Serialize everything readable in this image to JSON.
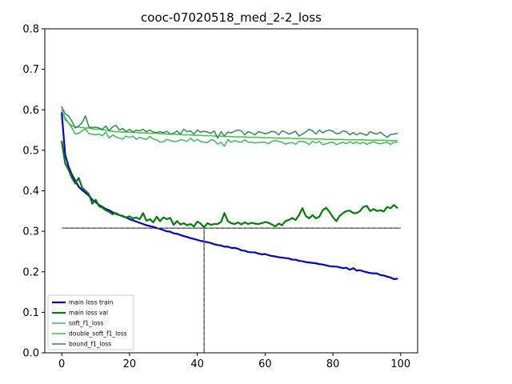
{
  "chart_data": {
    "type": "line",
    "title": "cooc-07020518_med_2-2_loss",
    "xlabel": "",
    "ylabel": "",
    "xlim": [
      -5,
      105
    ],
    "ylim": [
      0.0,
      0.8
    ],
    "x_ticks": [
      0,
      20,
      40,
      60,
      80,
      100
    ],
    "y_ticks": [
      0.0,
      0.1,
      0.2,
      0.3,
      0.4,
      0.5,
      0.6,
      0.7,
      0.8
    ],
    "x_tick_labels": [
      "0",
      "20",
      "40",
      "60",
      "80",
      "100"
    ],
    "y_tick_labels": [
      "0.0",
      "0.1",
      "0.2",
      "0.3",
      "0.4",
      "0.5",
      "0.6",
      "0.7",
      "0.8"
    ],
    "grid": false,
    "legend_position": "lower-left",
    "reference_lines": {
      "horizontal_y": 0.308,
      "vertical_x": 42
    },
    "series": [
      {
        "name": "main loss train",
        "color": "#0000dd",
        "width": 2.2,
        "x": [
          0,
          1,
          2,
          3,
          4,
          5,
          6,
          7,
          8,
          9,
          10,
          11,
          12,
          13,
          14,
          15,
          16,
          17,
          18,
          19,
          20,
          21,
          22,
          23,
          24,
          25,
          26,
          27,
          28,
          29,
          30,
          31,
          32,
          33,
          34,
          35,
          36,
          37,
          38,
          39,
          40,
          41,
          42,
          43,
          44,
          45,
          46,
          47,
          48,
          49,
          50,
          51,
          52,
          53,
          54,
          55,
          56,
          57,
          58,
          59,
          60,
          61,
          62,
          63,
          64,
          65,
          66,
          67,
          68,
          69,
          70,
          71,
          72,
          73,
          74,
          75,
          76,
          77,
          78,
          79,
          80,
          81,
          82,
          83,
          84,
          85,
          86,
          87,
          88,
          89,
          90,
          91,
          92,
          93,
          94,
          95,
          96,
          97,
          98,
          99
        ],
        "values": [
          0.592,
          0.49,
          0.46,
          0.44,
          0.425,
          0.41,
          0.402,
          0.395,
          0.388,
          0.378,
          0.372,
          0.365,
          0.36,
          0.355,
          0.352,
          0.347,
          0.343,
          0.34,
          0.337,
          0.334,
          0.33,
          0.327,
          0.324,
          0.321,
          0.318,
          0.315,
          0.313,
          0.311,
          0.308,
          0.306,
          0.303,
          0.3,
          0.299,
          0.295,
          0.294,
          0.291,
          0.288,
          0.286,
          0.283,
          0.281,
          0.279,
          0.276,
          0.275,
          0.273,
          0.271,
          0.268,
          0.266,
          0.265,
          0.262,
          0.262,
          0.259,
          0.259,
          0.257,
          0.253,
          0.252,
          0.249,
          0.248,
          0.248,
          0.245,
          0.243,
          0.244,
          0.241,
          0.239,
          0.238,
          0.236,
          0.235,
          0.234,
          0.233,
          0.23,
          0.23,
          0.227,
          0.226,
          0.224,
          0.223,
          0.222,
          0.221,
          0.219,
          0.218,
          0.216,
          0.214,
          0.213,
          0.213,
          0.211,
          0.209,
          0.21,
          0.205,
          0.209,
          0.203,
          0.204,
          0.201,
          0.199,
          0.197,
          0.196,
          0.196,
          0.192,
          0.191,
          0.188,
          0.186,
          0.182,
          0.183
        ]
      },
      {
        "name": "main loss val",
        "color": "#008000",
        "width": 2.2,
        "x": [
          0,
          1,
          2,
          3,
          4,
          5,
          6,
          7,
          8,
          9,
          10,
          11,
          12,
          13,
          14,
          15,
          16,
          17,
          18,
          19,
          20,
          21,
          22,
          23,
          24,
          25,
          26,
          27,
          28,
          29,
          30,
          31,
          32,
          33,
          34,
          35,
          36,
          37,
          38,
          39,
          40,
          41,
          42,
          43,
          44,
          45,
          46,
          47,
          48,
          49,
          50,
          51,
          52,
          53,
          54,
          55,
          56,
          57,
          58,
          59,
          60,
          61,
          62,
          63,
          64,
          65,
          66,
          67,
          68,
          69,
          70,
          71,
          72,
          73,
          74,
          75,
          76,
          77,
          78,
          79,
          80,
          81,
          82,
          83,
          84,
          85,
          86,
          87,
          88,
          89,
          90,
          91,
          92,
          93,
          94,
          95,
          96,
          97,
          98,
          99
        ],
        "values": [
          0.522,
          0.468,
          0.452,
          0.432,
          0.418,
          0.432,
          0.408,
          0.4,
          0.392,
          0.368,
          0.378,
          0.362,
          0.358,
          0.352,
          0.348,
          0.342,
          0.345,
          0.34,
          0.338,
          0.334,
          0.337,
          0.332,
          0.334,
          0.33,
          0.345,
          0.326,
          0.33,
          0.322,
          0.336,
          0.325,
          0.334,
          0.33,
          0.333,
          0.316,
          0.325,
          0.317,
          0.32,
          0.315,
          0.318,
          0.312,
          0.324,
          0.319,
          0.31,
          0.32,
          0.316,
          0.318,
          0.318,
          0.323,
          0.345,
          0.325,
          0.32,
          0.318,
          0.322,
          0.317,
          0.322,
          0.318,
          0.321,
          0.319,
          0.318,
          0.32,
          0.323,
          0.321,
          0.317,
          0.312,
          0.319,
          0.315,
          0.325,
          0.328,
          0.333,
          0.328,
          0.34,
          0.357,
          0.338,
          0.332,
          0.34,
          0.332,
          0.336,
          0.352,
          0.358,
          0.348,
          0.335,
          0.325,
          0.338,
          0.345,
          0.35,
          0.351,
          0.345,
          0.345,
          0.35,
          0.36,
          0.363,
          0.35,
          0.355,
          0.35,
          0.352,
          0.349,
          0.36,
          0.357,
          0.365,
          0.358
        ]
      },
      {
        "name": "soft_f1_loss",
        "color": "#3cb860",
        "width": 1.5,
        "x": [
          0,
          1,
          2,
          3,
          4,
          5,
          6,
          7,
          8,
          9,
          10,
          11,
          12,
          13,
          14,
          15,
          16,
          17,
          18,
          19,
          20,
          21,
          22,
          23,
          24,
          25,
          26,
          27,
          28,
          29,
          30,
          31,
          32,
          33,
          34,
          35,
          36,
          37,
          38,
          39,
          40,
          41,
          42,
          43,
          44,
          45,
          46,
          47,
          48,
          49,
          50,
          51,
          52,
          53,
          54,
          55,
          56,
          57,
          58,
          59,
          60,
          61,
          62,
          63,
          64,
          65,
          66,
          67,
          68,
          69,
          70,
          71,
          72,
          73,
          74,
          75,
          76,
          77,
          78,
          79,
          80,
          81,
          82,
          83,
          84,
          85,
          86,
          87,
          88,
          89,
          90,
          91,
          92,
          93,
          94,
          95,
          96,
          97,
          98,
          99
        ],
        "values": [
          0.6,
          0.58,
          0.568,
          0.555,
          0.54,
          0.542,
          0.548,
          0.553,
          0.541,
          0.54,
          0.538,
          0.54,
          0.536,
          0.545,
          0.53,
          0.538,
          0.533,
          0.53,
          0.528,
          0.535,
          0.532,
          0.535,
          0.527,
          0.532,
          0.529,
          0.527,
          0.534,
          0.528,
          0.526,
          0.52,
          0.521,
          0.527,
          0.524,
          0.522,
          0.522,
          0.526,
          0.525,
          0.522,
          0.53,
          0.522,
          0.527,
          0.522,
          0.52,
          0.519,
          0.526,
          0.524,
          0.515,
          0.52,
          0.51,
          0.526,
          0.52,
          0.524,
          0.521,
          0.52,
          0.526,
          0.52,
          0.52,
          0.518,
          0.519,
          0.52,
          0.52,
          0.516,
          0.522,
          0.524,
          0.522,
          0.52,
          0.515,
          0.518,
          0.519,
          0.515,
          0.522,
          0.522,
          0.52,
          0.514,
          0.522,
          0.518,
          0.522,
          0.514,
          0.516,
          0.519,
          0.52,
          0.514,
          0.517,
          0.52,
          0.516,
          0.521,
          0.517,
          0.52,
          0.516,
          0.52,
          0.515,
          0.518,
          0.521,
          0.518,
          0.516,
          0.518,
          0.52,
          0.514,
          0.52,
          0.52
        ]
      },
      {
        "name": "double_soft_f1_loss",
        "color": "#32cd32",
        "width": 1.5,
        "x": [
          0,
          1,
          2,
          3,
          4,
          5,
          6,
          7,
          8,
          9,
          10,
          11,
          12,
          13,
          14,
          15,
          16,
          17,
          18,
          19,
          20,
          21,
          22,
          23,
          24,
          25,
          26,
          27,
          28,
          29,
          30,
          31,
          32,
          33,
          34,
          35,
          36,
          37,
          38,
          39,
          40,
          41,
          42,
          43,
          44,
          45,
          46,
          47,
          48,
          49,
          50,
          51,
          52,
          53,
          54,
          55,
          56,
          57,
          58,
          59,
          60,
          61,
          62,
          63,
          64,
          65,
          66,
          67,
          68,
          69,
          70,
          71,
          72,
          73,
          74,
          75,
          76,
          77,
          78,
          79,
          80,
          81,
          82,
          83,
          84,
          85,
          86,
          87,
          88,
          89,
          90,
          91,
          92,
          93,
          94,
          95,
          96,
          97,
          98,
          99
        ],
        "values": [
          0.6,
          0.575,
          0.568,
          0.56,
          0.558,
          0.557,
          0.556,
          0.555,
          0.555,
          0.553,
          0.552,
          0.552,
          0.55,
          0.55,
          0.548,
          0.547,
          0.546,
          0.546,
          0.545,
          0.545,
          0.545,
          0.544,
          0.544,
          0.543,
          0.543,
          0.543,
          0.542,
          0.542,
          0.542,
          0.541,
          0.541,
          0.54,
          0.54,
          0.54,
          0.539,
          0.539,
          0.538,
          0.538,
          0.538,
          0.537,
          0.537,
          0.537,
          0.536,
          0.536,
          0.536,
          0.535,
          0.535,
          0.535,
          0.534,
          0.534,
          0.534,
          0.533,
          0.533,
          0.533,
          0.533,
          0.532,
          0.532,
          0.532,
          0.532,
          0.531,
          0.531,
          0.531,
          0.531,
          0.53,
          0.53,
          0.53,
          0.53,
          0.53,
          0.529,
          0.529,
          0.529,
          0.529,
          0.529,
          0.528,
          0.528,
          0.528,
          0.528,
          0.528,
          0.527,
          0.527,
          0.527,
          0.527,
          0.527,
          0.527,
          0.526,
          0.526,
          0.526,
          0.526,
          0.526,
          0.526,
          0.525,
          0.525,
          0.525,
          0.525,
          0.525,
          0.525,
          0.524,
          0.524,
          0.524,
          0.524
        ]
      },
      {
        "name": "bound_f1_loss",
        "color": "#2e8b57",
        "width": 1.5,
        "x": [
          0,
          1,
          2,
          3,
          4,
          5,
          6,
          7,
          8,
          9,
          10,
          11,
          12,
          13,
          14,
          15,
          16,
          17,
          18,
          19,
          20,
          21,
          22,
          23,
          24,
          25,
          26,
          27,
          28,
          29,
          30,
          31,
          32,
          33,
          34,
          35,
          36,
          37,
          38,
          39,
          40,
          41,
          42,
          43,
          44,
          45,
          46,
          47,
          48,
          49,
          50,
          51,
          52,
          53,
          54,
          55,
          56,
          57,
          58,
          59,
          60,
          61,
          62,
          63,
          64,
          65,
          66,
          67,
          68,
          69,
          70,
          71,
          72,
          73,
          74,
          75,
          76,
          77,
          78,
          79,
          80,
          81,
          82,
          83,
          84,
          85,
          86,
          87,
          88,
          89,
          90,
          91,
          92,
          93,
          94,
          95,
          96,
          97,
          98,
          99
        ],
        "values": [
          0.607,
          0.59,
          0.585,
          0.572,
          0.555,
          0.56,
          0.568,
          0.585,
          0.558,
          0.556,
          0.557,
          0.555,
          0.552,
          0.56,
          0.548,
          0.558,
          0.562,
          0.55,
          0.554,
          0.546,
          0.552,
          0.545,
          0.55,
          0.548,
          0.552,
          0.546,
          0.55,
          0.545,
          0.544,
          0.546,
          0.543,
          0.547,
          0.54,
          0.542,
          0.548,
          0.54,
          0.552,
          0.546,
          0.548,
          0.54,
          0.55,
          0.545,
          0.547,
          0.545,
          0.542,
          0.548,
          0.53,
          0.546,
          0.535,
          0.545,
          0.543,
          0.547,
          0.55,
          0.548,
          0.538,
          0.546,
          0.543,
          0.538,
          0.546,
          0.544,
          0.541,
          0.543,
          0.547,
          0.545,
          0.538,
          0.548,
          0.545,
          0.54,
          0.543,
          0.547,
          0.535,
          0.54,
          0.545,
          0.552,
          0.548,
          0.54,
          0.55,
          0.543,
          0.548,
          0.55,
          0.547,
          0.541,
          0.542,
          0.548,
          0.546,
          0.538,
          0.544,
          0.538,
          0.543,
          0.54,
          0.537,
          0.546,
          0.542,
          0.54,
          0.545,
          0.538,
          0.532,
          0.539,
          0.54,
          0.542
        ]
      }
    ]
  }
}
